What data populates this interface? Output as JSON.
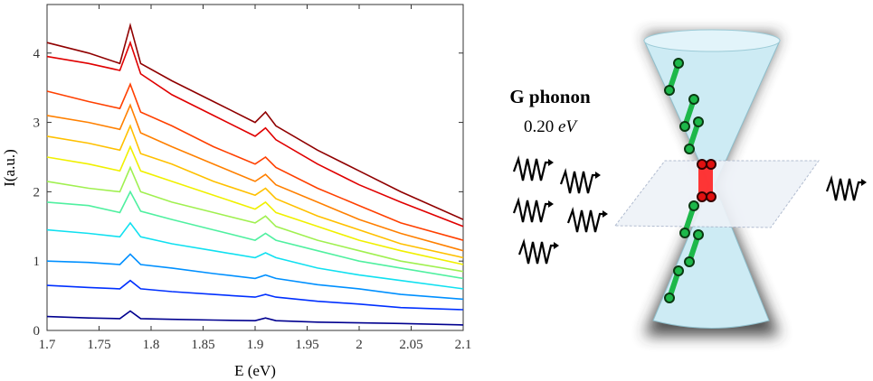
{
  "chart_data": {
    "type": "line",
    "xlabel": "E (eV)",
    "ylabel": "I(a.u.)",
    "x": [
      1.7,
      1.74,
      1.77,
      1.78,
      1.79,
      1.82,
      1.86,
      1.9,
      1.91,
      1.92,
      1.96,
      2.0,
      2.04,
      2.1
    ],
    "xlim": [
      1.7,
      2.1
    ],
    "xticks": [
      1.7,
      1.75,
      1.8,
      1.85,
      1.9,
      1.95,
      2,
      2.05,
      2.1
    ],
    "ylim": [
      0,
      4.7
    ],
    "yticks": [
      0,
      1,
      2,
      3,
      4
    ],
    "series": [
      {
        "color": "#00008f",
        "values": [
          0.2,
          0.18,
          0.17,
          0.28,
          0.17,
          0.16,
          0.15,
          0.14,
          0.18,
          0.14,
          0.12,
          0.11,
          0.1,
          0.08
        ]
      },
      {
        "color": "#0030ff",
        "values": [
          0.65,
          0.62,
          0.6,
          0.72,
          0.6,
          0.56,
          0.52,
          0.48,
          0.52,
          0.48,
          0.42,
          0.38,
          0.33,
          0.3
        ]
      },
      {
        "color": "#0090ff",
        "values": [
          1.0,
          0.98,
          0.95,
          1.1,
          0.95,
          0.9,
          0.82,
          0.75,
          0.8,
          0.75,
          0.66,
          0.6,
          0.52,
          0.45
        ]
      },
      {
        "color": "#10e0f0",
        "values": [
          1.45,
          1.4,
          1.35,
          1.55,
          1.35,
          1.25,
          1.15,
          1.05,
          1.12,
          1.05,
          0.9,
          0.8,
          0.72,
          0.6
        ]
      },
      {
        "color": "#50f0a0",
        "values": [
          1.85,
          1.8,
          1.7,
          2.0,
          1.72,
          1.6,
          1.45,
          1.3,
          1.4,
          1.3,
          1.15,
          1.0,
          0.9,
          0.75
        ]
      },
      {
        "color": "#a0f050",
        "values": [
          2.15,
          2.05,
          2.0,
          2.35,
          2.0,
          1.85,
          1.7,
          1.55,
          1.65,
          1.5,
          1.3,
          1.15,
          1.0,
          0.85
        ]
      },
      {
        "color": "#f0f000",
        "values": [
          2.5,
          2.4,
          2.3,
          2.65,
          2.3,
          2.15,
          1.95,
          1.75,
          1.85,
          1.7,
          1.5,
          1.3,
          1.15,
          0.95
        ]
      },
      {
        "color": "#ffc000",
        "values": [
          2.8,
          2.7,
          2.6,
          2.95,
          2.55,
          2.4,
          2.15,
          1.95,
          2.05,
          1.9,
          1.65,
          1.45,
          1.25,
          1.05
        ]
      },
      {
        "color": "#ff8000",
        "values": [
          3.1,
          3.0,
          2.9,
          3.25,
          2.85,
          2.65,
          2.4,
          2.15,
          2.25,
          2.1,
          1.85,
          1.6,
          1.4,
          1.15
        ]
      },
      {
        "color": "#ff4000",
        "values": [
          3.45,
          3.3,
          3.2,
          3.55,
          3.15,
          2.95,
          2.65,
          2.4,
          2.5,
          2.35,
          2.05,
          1.8,
          1.55,
          1.3
        ]
      },
      {
        "color": "#e00000",
        "values": [
          3.95,
          3.85,
          3.75,
          4.15,
          3.7,
          3.4,
          3.1,
          2.8,
          2.92,
          2.75,
          2.4,
          2.1,
          1.85,
          1.5
        ]
      },
      {
        "color": "#900000",
        "values": [
          4.15,
          4.0,
          3.85,
          4.4,
          3.85,
          3.6,
          3.3,
          3.0,
          3.15,
          2.95,
          2.6,
          2.3,
          2.0,
          1.6
        ]
      }
    ]
  },
  "diagram": {
    "label": "G phonon",
    "energy_value": "0.20",
    "energy_unit": "eV"
  }
}
